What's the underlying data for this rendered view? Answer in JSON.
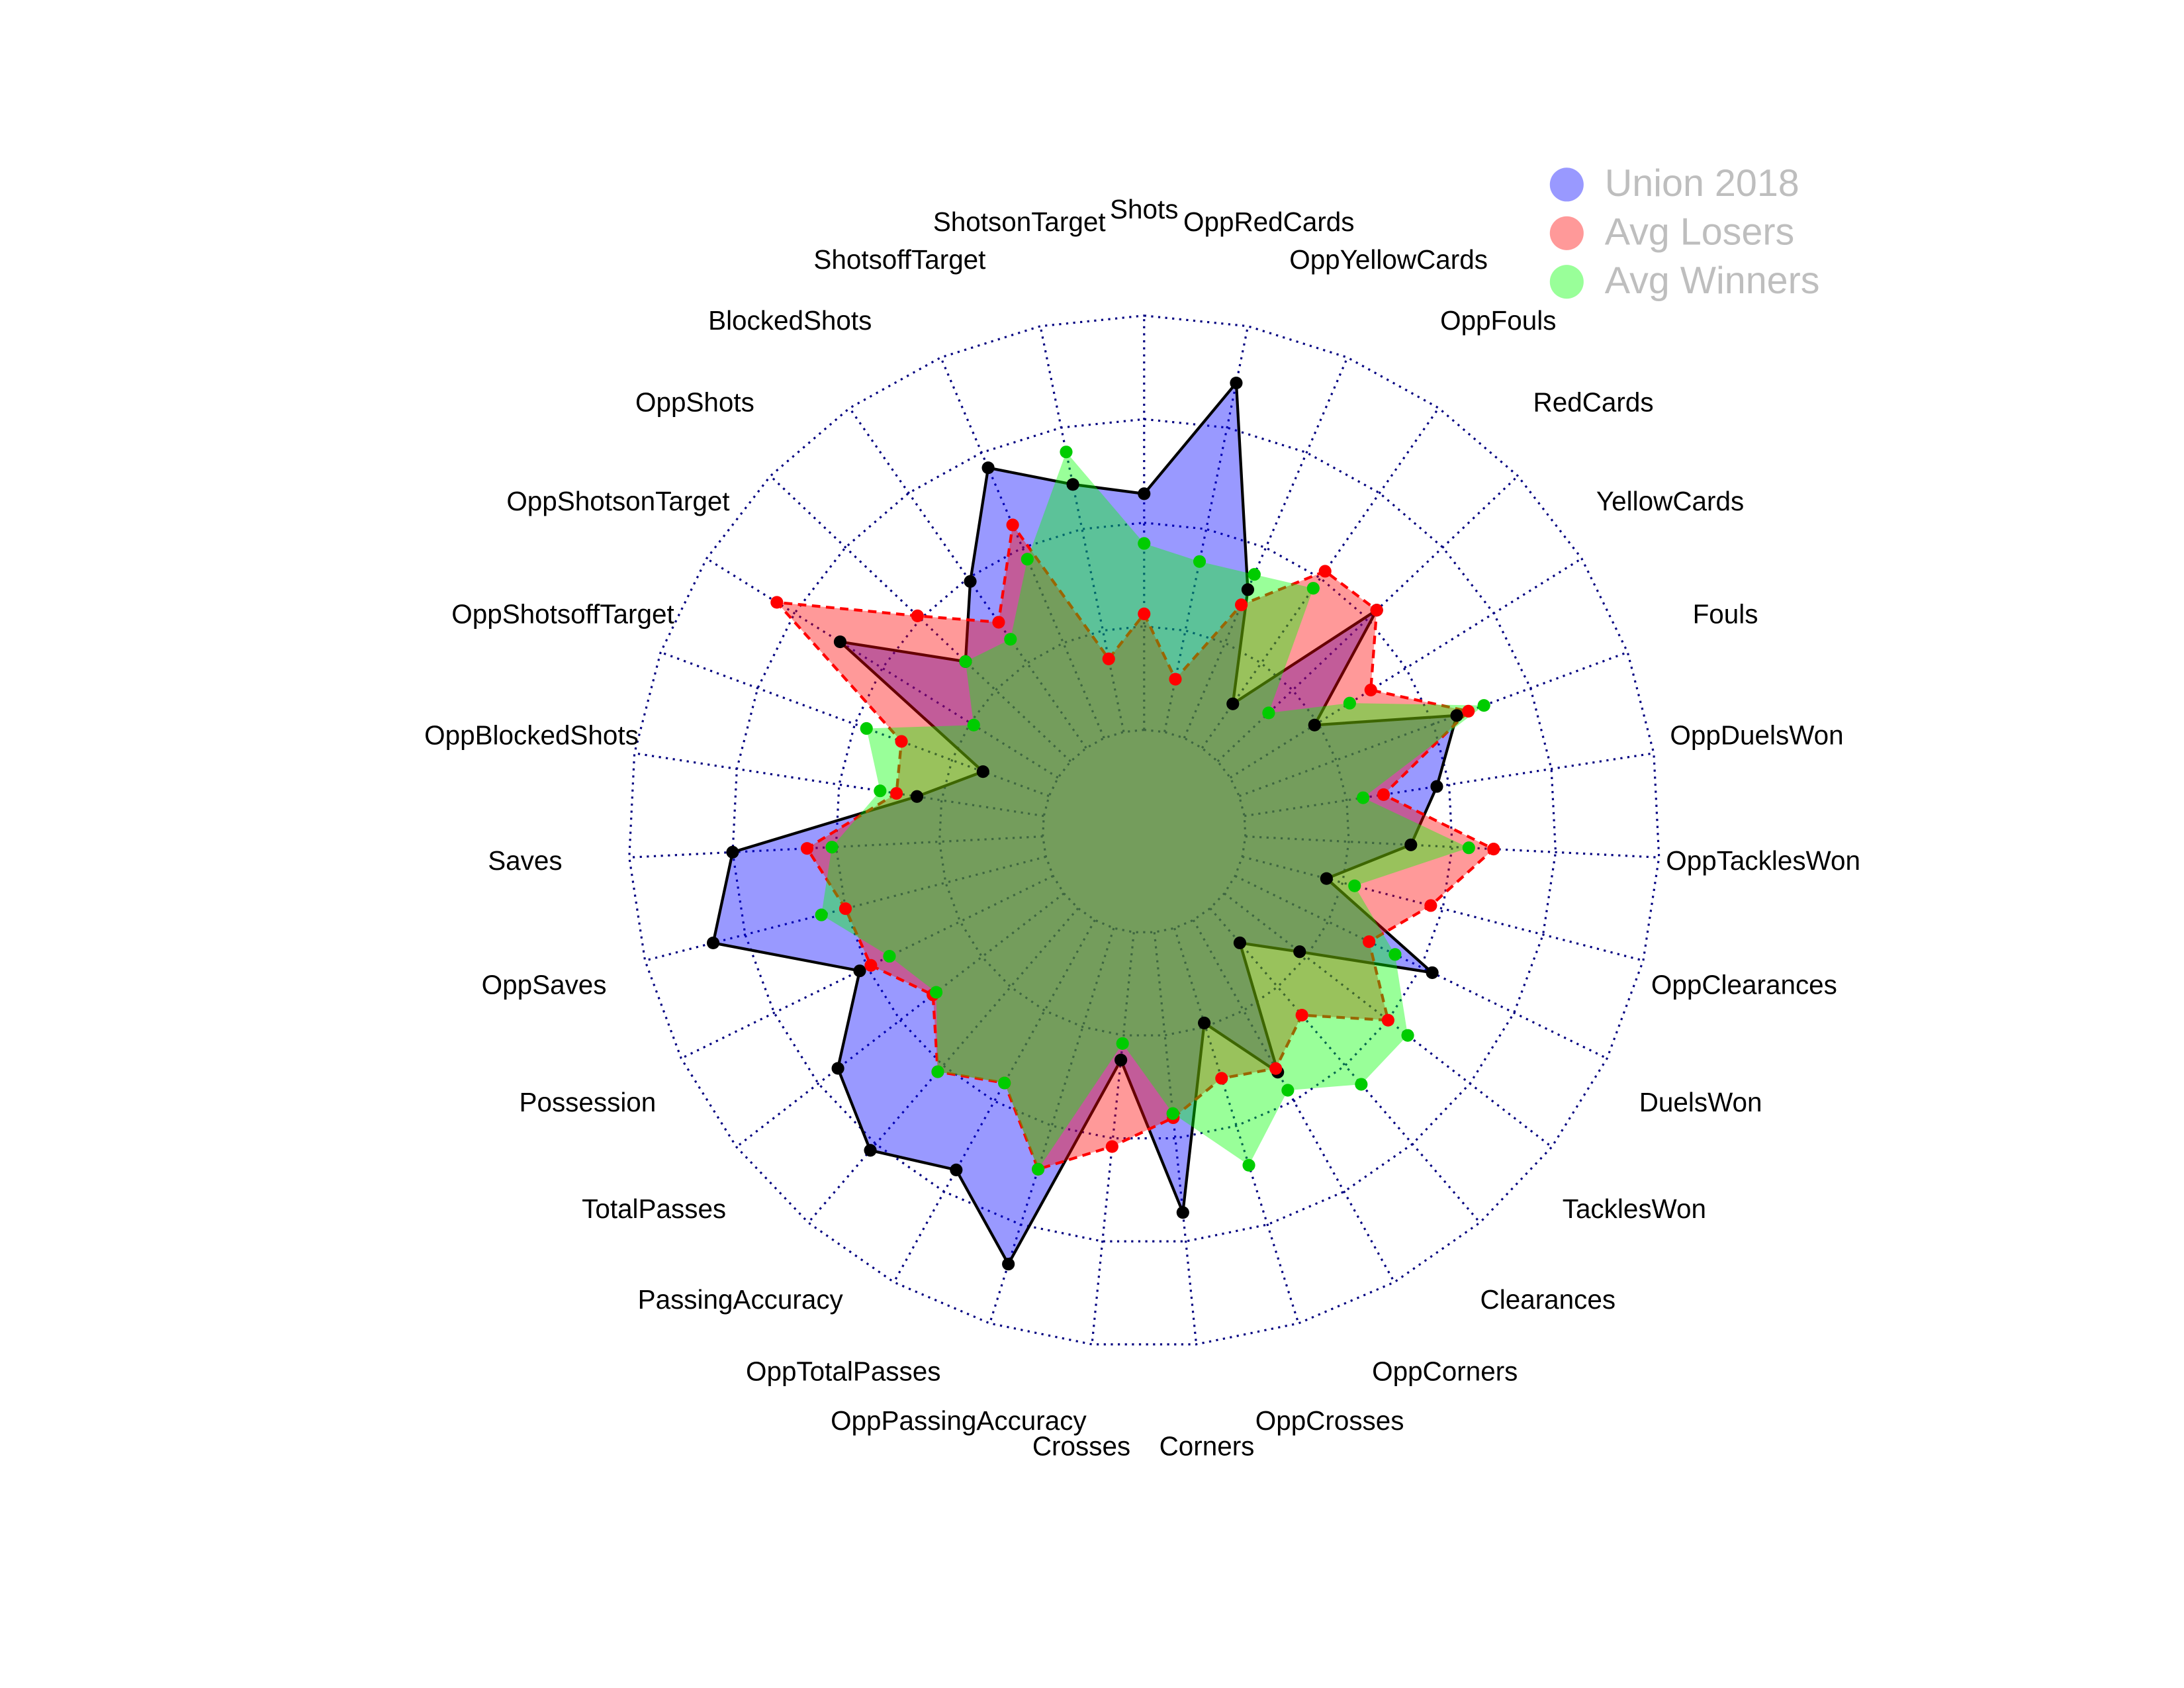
{
  "chart_data": {
    "type": "radar",
    "categories": [
      "Shots",
      "OppRedCards",
      "OppYellowCards",
      "OppFouls",
      "RedCards",
      "YellowCards",
      "Fouls",
      "OppDuelsWon",
      "OppTacklesWon",
      "OppClearances",
      "DuelsWon",
      "TacklesWon",
      "Clearances",
      "OppCorners",
      "OppCrosses",
      "Corners",
      "Crosses",
      "OppPassingAccuracy",
      "OppTotalPasses",
      "PassingAccuracy",
      "TotalPasses",
      "Possession",
      "OppSaves",
      "Saves",
      "OppBlockedShots",
      "OppShotsoffTarget",
      "OppShotsonTarget",
      "OppShots",
      "BlockedShots",
      "ShotsoffTarget",
      "ShotsonTarget"
    ],
    "series": [
      {
        "name": "Union 2018",
        "color": "#0000ff",
        "line_color": "#000000",
        "line_style": "solid",
        "values": [
          0.57,
          0.86,
          0.39,
          0.13,
          0.53,
          0.24,
          0.56,
          0.47,
          0.4,
          0.21,
          0.53,
          0.23,
          0.11,
          0.42,
          0.24,
          0.68,
          0.31,
          0.85,
          0.69,
          0.77,
          0.69,
          0.52,
          0.83,
          0.75,
          0.31,
          0.17,
          0.62,
          0.35,
          0.49,
          0.71,
          0.61
        ]
      },
      {
        "name": "Avg Losers",
        "color": "#ff0000",
        "line_color": "#ff0000",
        "line_style": "dashed",
        "values": [
          0.28,
          0.13,
          0.35,
          0.52,
          0.53,
          0.4,
          0.59,
          0.34,
          0.6,
          0.47,
          0.36,
          0.5,
          0.34,
          0.41,
          0.38,
          0.45,
          0.52,
          0.61,
          0.45,
          0.52,
          0.4,
          0.49,
          0.5,
          0.57,
          0.36,
          0.38,
          0.8,
          0.51,
          0.37,
          0.56,
          0.18
        ]
      },
      {
        "name": "Avg Winners",
        "color": "#00ff00",
        "line_color": "#00cc00",
        "line_style": "none",
        "values": [
          0.45,
          0.42,
          0.43,
          0.47,
          0.17,
          0.34,
          0.63,
          0.29,
          0.54,
          0.28,
          0.43,
          0.56,
          0.56,
          0.47,
          0.6,
          0.44,
          0.27,
          0.61,
          0.45,
          0.52,
          0.39,
          0.44,
          0.56,
          0.51,
          0.4,
          0.47,
          0.24,
          0.35,
          0.32,
          0.47,
          0.69
        ]
      }
    ],
    "ylim": [
      0,
      1
    ],
    "yticks": [
      0,
      0.25,
      0.5,
      0.75,
      1
    ],
    "grid": true,
    "legend": "top-right"
  }
}
